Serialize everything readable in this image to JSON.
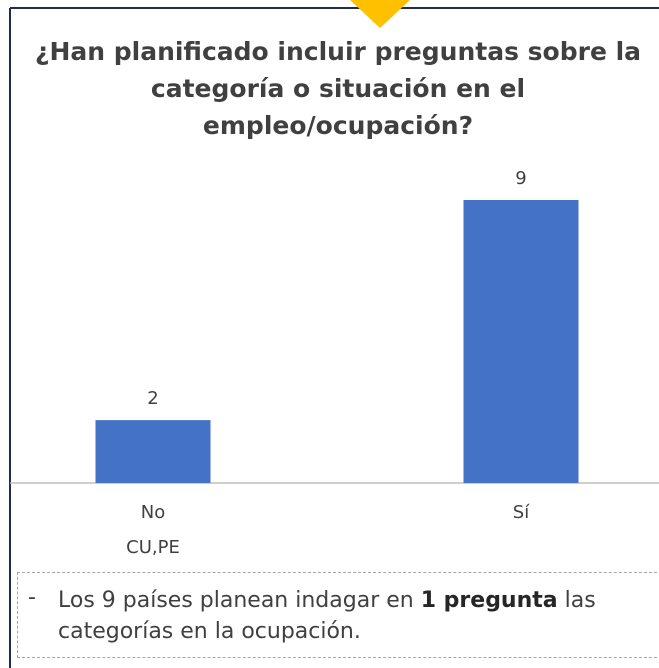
{
  "chart_data": {
    "type": "bar",
    "title_lines": [
      "¿Han planificado incluir preguntas sobre la",
      "categoría o situación en el",
      "empleo/ocupación?"
    ],
    "categories": [
      "No",
      "Sí"
    ],
    "category_sublabels": [
      "CU,PE",
      null
    ],
    "values": [
      2,
      9
    ],
    "color": "#4472c4",
    "note": {
      "bullet": "-",
      "parts": [
        "Los 9 países planean indagar en ",
        "1 pregunta",
        " las categorías en la ocupación."
      ]
    }
  }
}
